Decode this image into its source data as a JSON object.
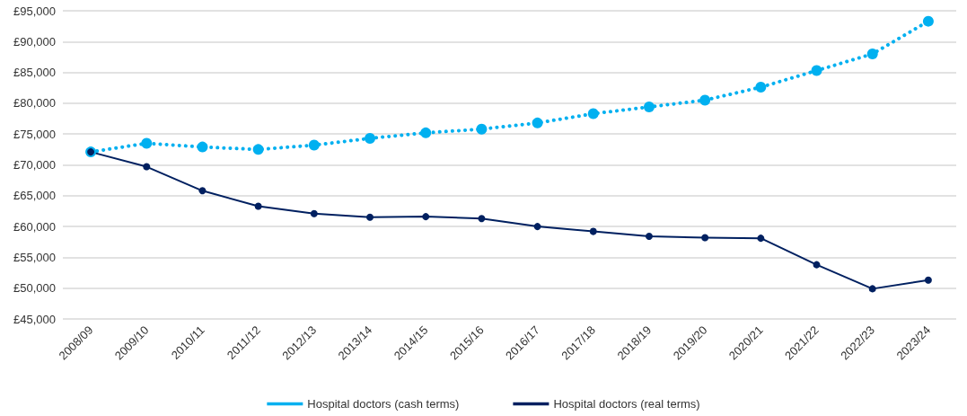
{
  "chart_data": {
    "type": "line",
    "categories": [
      "2008/09",
      "2009/10",
      "2010/11",
      "2011/12",
      "2012/13",
      "2013/14",
      "2014/15",
      "2015/16",
      "2016/17",
      "2017/18",
      "2018/19",
      "2019/20",
      "2020/21",
      "2021/22",
      "2022/23",
      "2023/24"
    ],
    "series": [
      {
        "name": "Hospital doctors (cash terms)",
        "color": "#00b0f0",
        "line_style": "dotted",
        "values": [
          72100,
          73500,
          72900,
          72500,
          73200,
          74300,
          75200,
          75800,
          76800,
          78300,
          79400,
          80500,
          82600,
          85300,
          88000,
          93300
        ]
      },
      {
        "name": "Hospital doctors (real terms)",
        "color": "#002060",
        "line_style": "solid",
        "values": [
          72100,
          69700,
          65800,
          63300,
          62100,
          61500,
          61600,
          61300,
          60000,
          59200,
          58400,
          58200,
          58100,
          53800,
          49900,
          51300
        ]
      }
    ],
    "ylim": [
      45000,
      95000
    ],
    "yticks": [
      {
        "value": 45000,
        "label": "£45,000"
      },
      {
        "value": 50000,
        "label": "£50,000"
      },
      {
        "value": 55000,
        "label": "£55,000"
      },
      {
        "value": 60000,
        "label": "£60,000"
      },
      {
        "value": 65000,
        "label": "£65,000"
      },
      {
        "value": 70000,
        "label": "£70,000"
      },
      {
        "value": 75000,
        "label": "£75,000"
      },
      {
        "value": 80000,
        "label": "£80,000"
      },
      {
        "value": 85000,
        "label": "£85,000"
      },
      {
        "value": 90000,
        "label": "£90,000"
      },
      {
        "value": 95000,
        "label": "£95,000"
      }
    ],
    "grid": "y",
    "legend": "bottom",
    "marker": "circle"
  }
}
